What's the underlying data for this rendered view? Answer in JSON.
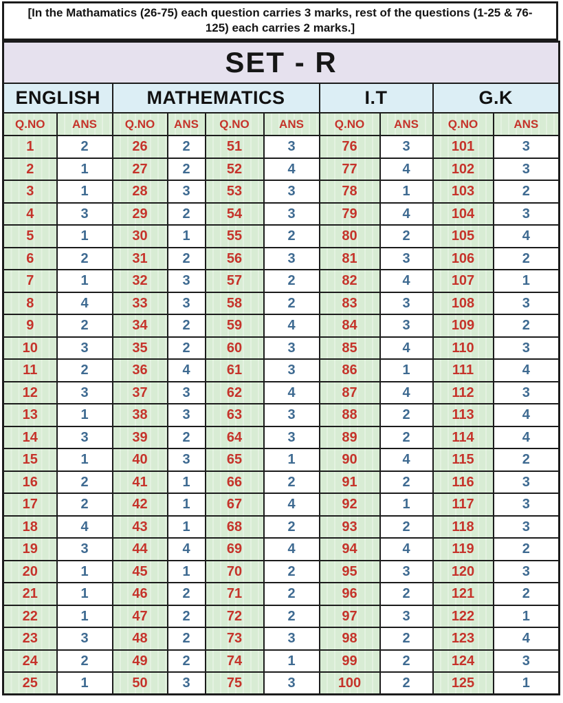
{
  "note": "[In the Mathamatics (26-75) each question carries 3 marks, rest of the questions (1-25 & 76-125) each carries 2 marks.]",
  "set_title": "SET - R",
  "subject_headers": [
    {
      "label": "ENGLISH",
      "span": 2
    },
    {
      "label": "MATHEMATICS",
      "span": 4
    },
    {
      "label": "I.T",
      "span": 2
    },
    {
      "label": "G.K",
      "span": 2
    }
  ],
  "table": {
    "header": {
      "qno": "Q.NO",
      "ans": "ANS"
    },
    "rows_per_group": 25,
    "groups": [
      {
        "subject": "ENGLISH",
        "start": 1,
        "answers": [
          2,
          1,
          1,
          3,
          1,
          2,
          1,
          4,
          2,
          3,
          2,
          3,
          1,
          3,
          1,
          2,
          2,
          4,
          3,
          1,
          1,
          1,
          3,
          2,
          1
        ]
      },
      {
        "subject": "MATHEMATICS",
        "start": 26,
        "answers": [
          2,
          2,
          3,
          2,
          1,
          2,
          3,
          3,
          2,
          2,
          4,
          3,
          3,
          2,
          3,
          1,
          1,
          1,
          4,
          1,
          2,
          2,
          2,
          2,
          3
        ]
      },
      {
        "subject": "MATHEMATICS",
        "start": 51,
        "answers": [
          3,
          4,
          3,
          3,
          2,
          3,
          2,
          2,
          4,
          3,
          3,
          4,
          3,
          3,
          1,
          2,
          4,
          2,
          4,
          2,
          2,
          2,
          3,
          1,
          3
        ]
      },
      {
        "subject": "I.T",
        "start": 76,
        "answers": [
          3,
          4,
          1,
          4,
          2,
          3,
          4,
          3,
          3,
          4,
          1,
          4,
          2,
          2,
          4,
          2,
          1,
          2,
          4,
          3,
          2,
          3,
          2,
          2,
          2
        ]
      },
      {
        "subject": "G.K",
        "start": 101,
        "answers": [
          3,
          3,
          2,
          3,
          4,
          2,
          1,
          3,
          2,
          3,
          4,
          3,
          4,
          4,
          2,
          3,
          3,
          3,
          2,
          3,
          2,
          1,
          4,
          3,
          1
        ]
      }
    ]
  },
  "colors": {
    "banner_bg": "#e6e1ee",
    "subject_bg": "#dceef5",
    "green_bg": "#d8ecd4",
    "qno_red": "#c5332a",
    "ans_blue": "#3e6a91",
    "border_dark": "#1b1b1b"
  }
}
